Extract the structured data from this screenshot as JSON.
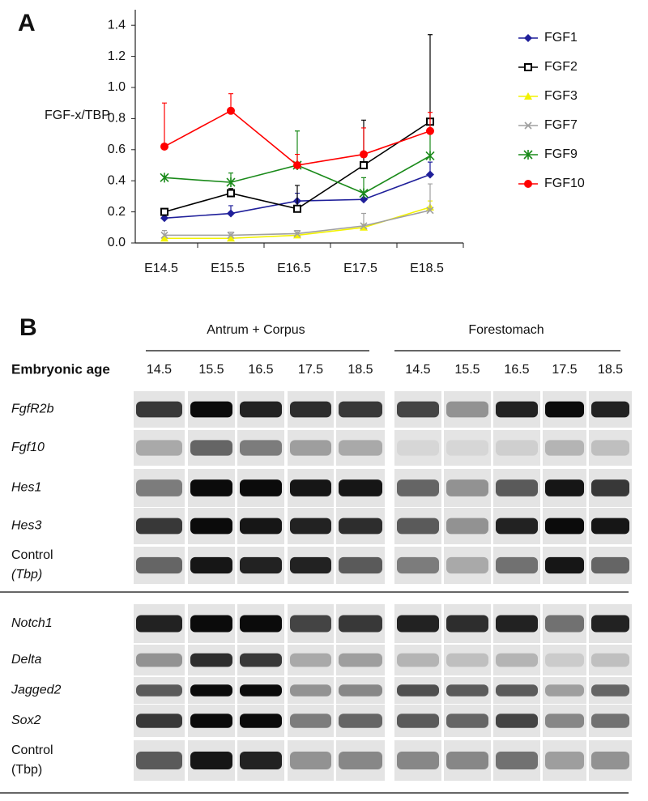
{
  "panel_a_label": "A",
  "chart_data": {
    "type": "line",
    "ylabel": "FGF-x/TBP",
    "categories": [
      "E14.5",
      "E15.5",
      "E16.5",
      "E17.5",
      "E18.5"
    ],
    "ylim": [
      0,
      1.5
    ],
    "yticks": [
      {
        "value": 0,
        "label": "0.0"
      },
      0.2,
      0.4,
      0.6,
      0.8,
      {
        "value": 1,
        "label": "1.0"
      },
      1.2,
      1.4
    ],
    "series": [
      {
        "name": "FGF1",
        "color": "#1f1f9a",
        "marker": "diamond",
        "values": [
          0.16,
          0.19,
          0.27,
          0.28,
          0.44
        ],
        "errors": [
          0.05,
          0.05,
          0.05,
          0.03,
          0.08
        ]
      },
      {
        "name": "FGF2",
        "color": "#000000",
        "marker": "square",
        "values": [
          0.2,
          0.32,
          0.22,
          0.5,
          0.78
        ],
        "errors": [
          0.02,
          0.03,
          0.15,
          0.29,
          0.56
        ]
      },
      {
        "name": "FGF3",
        "color": "#f2f200",
        "marker": "triangle",
        "values": [
          0.03,
          0.03,
          0.05,
          0.1,
          0.23
        ],
        "errors": [
          0.01,
          0.01,
          0.01,
          0.02,
          0.04
        ]
      },
      {
        "name": "FGF7",
        "color": "#a0a0a0",
        "marker": "cross",
        "values": [
          0.05,
          0.05,
          0.06,
          0.11,
          0.21
        ],
        "errors": [
          0.03,
          0.02,
          0.02,
          0.08,
          0.17
        ]
      },
      {
        "name": "FGF9",
        "color": "#1a8a1a",
        "marker": "star",
        "values": [
          0.42,
          0.39,
          0.5,
          0.32,
          0.56
        ],
        "errors": [
          0.01,
          0.06,
          0.22,
          0.1,
          0.15
        ]
      },
      {
        "name": "FGF10",
        "color": "#ff0000",
        "marker": "circle",
        "values": [
          0.62,
          0.85,
          0.5,
          0.57,
          0.72
        ],
        "errors": [
          0.28,
          0.11,
          0.07,
          0.17,
          0.12
        ]
      }
    ]
  },
  "panel_b": {
    "label": "B",
    "age_label": "Embryonic age",
    "groups": [
      {
        "title": "Antrum + Corpus",
        "lanes": [
          "14.5",
          "15.5",
          "16.5",
          "17.5",
          "18.5"
        ]
      },
      {
        "title": "Forestomach",
        "lanes": [
          "14.5",
          "15.5",
          "16.5",
          "17.5",
          "18.5"
        ]
      }
    ],
    "upper_rows": [
      {
        "label": "FgfR2b"
      },
      {
        "label": "Fgf10"
      },
      {
        "label": "Hes1"
      },
      {
        "label": "Hes3"
      },
      {
        "label": "Control",
        "sublabel": "(Tbp)"
      }
    ],
    "lower_rows": [
      {
        "label": "Notch1"
      },
      {
        "label": "Delta"
      },
      {
        "label": "Jagged2"
      },
      {
        "label": "Sox2"
      },
      {
        "label": "Control",
        "sublabel": "(Tbp)"
      }
    ]
  }
}
